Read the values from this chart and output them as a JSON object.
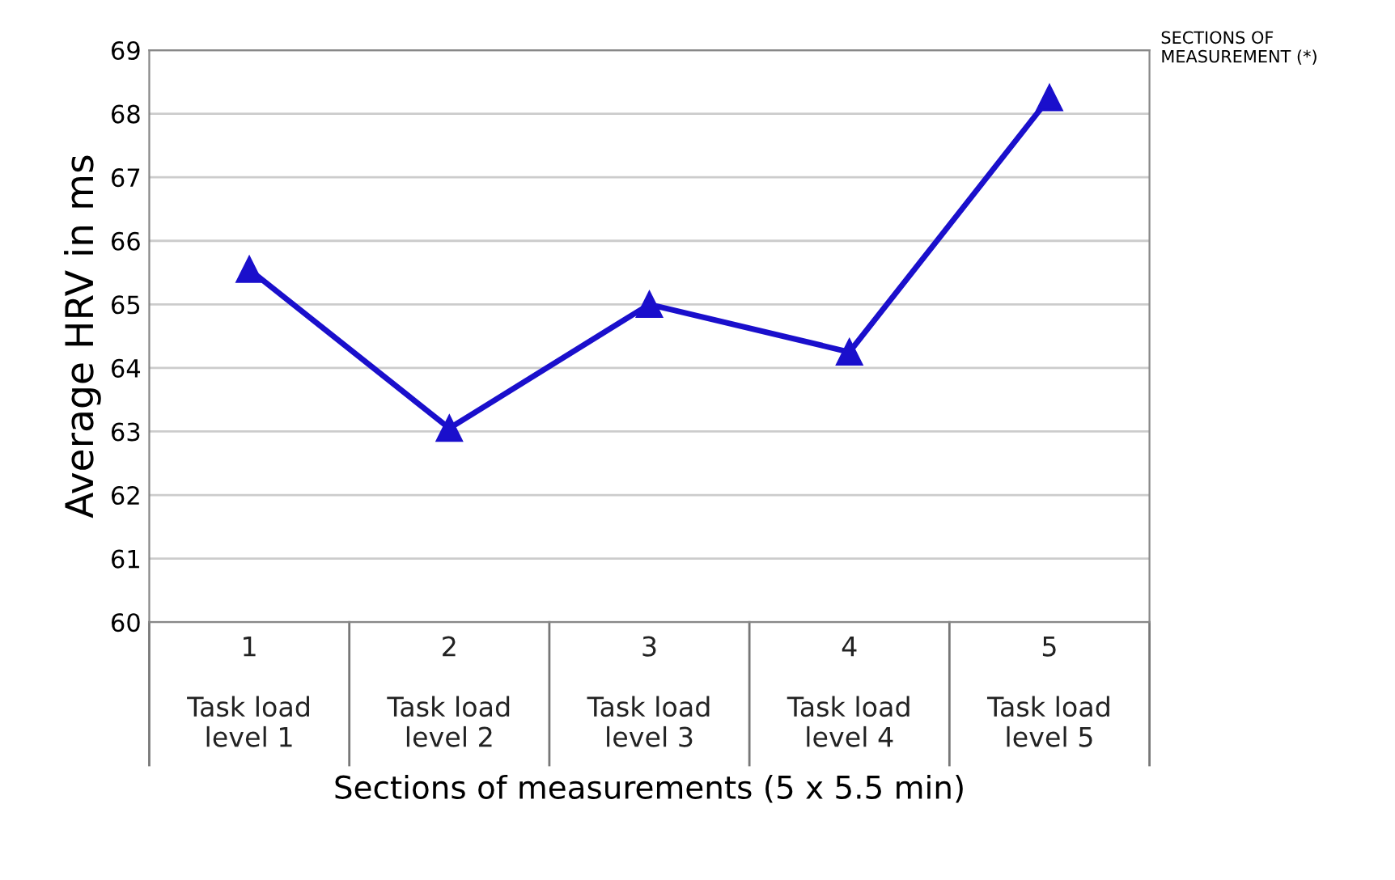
{
  "chart_data": {
    "type": "line",
    "xlabel": "Sections of measurements (5 x 5.5 min)",
    "ylabel": "Average HRV in ms",
    "categories": [
      "1\n\nTask load\nlevel 1",
      "2\n\nTask load\nlevel 2",
      "3\n\nTask load\nlevel 3",
      "4\n\nTask load\nlevel 4",
      "5\n\nTask load\nlevel 5"
    ],
    "series": [
      {
        "color": "#1a0fcc",
        "values": [
          65.55,
          63.05,
          65.0,
          64.25,
          68.25
        ]
      }
    ],
    "ylim": [
      60,
      69
    ],
    "yticks": [
      60,
      61,
      62,
      63,
      64,
      65,
      66,
      67,
      68,
      69
    ],
    "grid": "y",
    "marker": "triangle",
    "line_style": "solid",
    "legend": false,
    "annotations": [
      "SECTIONS OF\nMEASUREMENT (*)"
    ]
  }
}
